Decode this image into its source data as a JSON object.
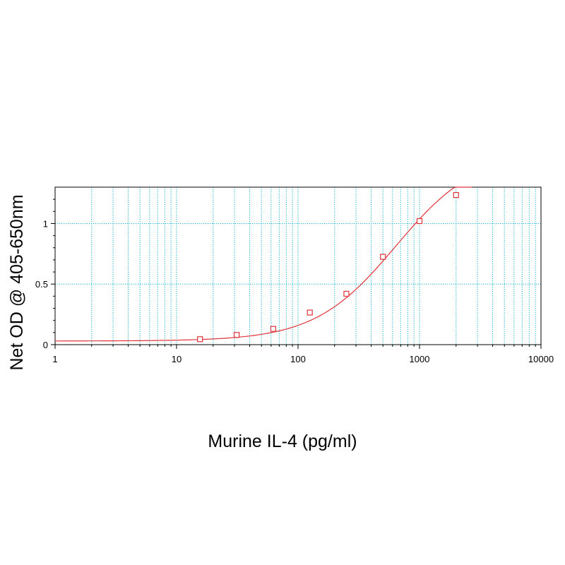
{
  "chart_data": {
    "type": "scatter",
    "title": "",
    "xlabel": "Murine IL-4 (pg/ml)",
    "ylabel": "Net OD @ 405-650nm",
    "x_scale": "log",
    "xlim": [
      1,
      10000
    ],
    "ylim": [
      0,
      1.3
    ],
    "x_ticks": [
      {
        "value": 1,
        "label": "1"
      },
      {
        "value": 10,
        "label": "10"
      },
      {
        "value": 100,
        "label": "100"
      },
      {
        "value": 1000,
        "label": "1000"
      },
      {
        "value": 10000,
        "label": "10000"
      }
    ],
    "y_ticks": [
      {
        "value": 0,
        "label": "0"
      },
      {
        "value": 0.5,
        "label": "0.5"
      },
      {
        "value": 1,
        "label": "1"
      }
    ],
    "grid": true,
    "grid_color": "#19b3d4",
    "series_color": "#e0333a",
    "points": {
      "x": [
        15.6,
        31.25,
        62.5,
        125,
        250,
        500,
        1000,
        2000
      ],
      "y": [
        0.045,
        0.08,
        0.13,
        0.265,
        0.42,
        0.725,
        1.02,
        1.235
      ]
    },
    "fit": {
      "model": "4PL",
      "bottom": 0.03,
      "top": 1.6,
      "ec50": 640,
      "hill": 1.3,
      "x_range": [
        1,
        2700
      ]
    }
  }
}
